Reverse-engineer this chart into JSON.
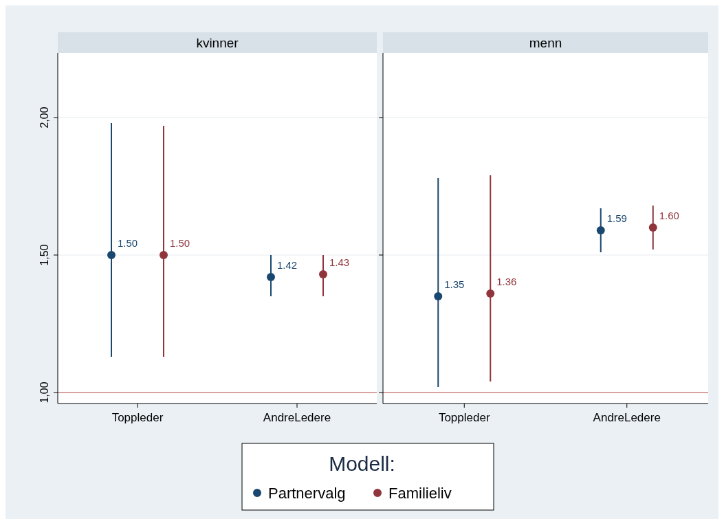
{
  "chart_data": [
    {
      "type": "scatter",
      "title": "kvinner",
      "categories": [
        "Toppleder",
        "AndreLedere"
      ],
      "ylim": [
        0.96,
        2.235
      ],
      "yticks": [
        {
          "value": 1,
          "label": "1,00"
        },
        {
          "value": 1.5,
          "label": "1,50"
        },
        {
          "value": 2,
          "label": "2,00"
        }
      ],
      "grid": "y",
      "marker": "circle",
      "legend": "bottom",
      "legend_title": "Modell:",
      "ref_lines": [
        {
          "axis": "y",
          "value": 1,
          "color": "#c0504d"
        }
      ],
      "series": [
        {
          "name": "Partnervalg",
          "color": "#1a476f",
          "values": [
            1.5,
            1.42
          ],
          "value_labels": [
            "1.50",
            "1.42"
          ],
          "errors": [
            [
              1.13,
              1.98
            ],
            [
              1.35,
              1.5
            ]
          ]
        },
        {
          "name": "Familieliv",
          "color": "#90353b",
          "values": [
            1.5,
            1.43
          ],
          "value_labels": [
            "1.50",
            "1.43"
          ],
          "errors": [
            [
              1.13,
              1.97
            ],
            [
              1.35,
              1.5
            ]
          ]
        }
      ]
    },
    {
      "type": "scatter",
      "title": "menn",
      "categories": [
        "Toppleder",
        "AndreLedere"
      ],
      "ylim": [
        0.96,
        2.235
      ],
      "yticks": [
        {
          "value": 1,
          "label": null
        },
        {
          "value": 1.5,
          "label": null
        },
        {
          "value": 2,
          "label": null
        }
      ],
      "grid": "y",
      "marker": "circle",
      "tick_labels": "x",
      "ref_lines": [
        {
          "axis": "y",
          "value": 1,
          "color": "#c0504d"
        }
      ],
      "series": [
        {
          "color": "#1a476f",
          "values": [
            1.35,
            1.59
          ],
          "value_labels": [
            "1.35",
            "1.59"
          ],
          "errors": [
            [
              1.02,
              1.78
            ],
            [
              1.51,
              1.67
            ]
          ]
        },
        {
          "color": "#90353b",
          "values": [
            1.36,
            1.6
          ],
          "value_labels": [
            "1.36",
            "1.60"
          ],
          "errors": [
            [
              1.04,
              1.79
            ],
            [
              1.52,
              1.68
            ]
          ]
        }
      ]
    }
  ]
}
